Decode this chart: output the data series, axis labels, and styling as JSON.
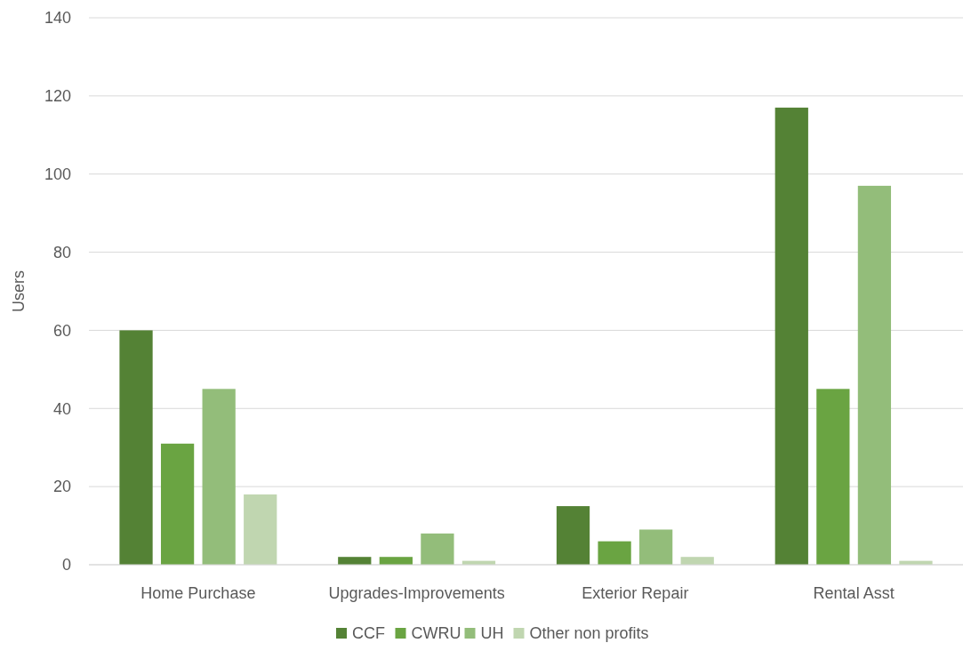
{
  "chart_data": {
    "type": "bar",
    "ylabel": "Users",
    "categories": [
      "Home Purchase",
      "Upgrades-Improvements",
      "Exterior Repair",
      "Rental Asst"
    ],
    "series": [
      {
        "name": "CCF",
        "color": "#548235",
        "values": [
          60,
          2,
          15,
          117
        ]
      },
      {
        "name": "CWRU",
        "color": "#6aa442",
        "values": [
          31,
          2,
          6,
          45
        ]
      },
      {
        "name": "UH",
        "color": "#93bd7a",
        "values": [
          45,
          8,
          9,
          97
        ]
      },
      {
        "name": "Other non profits",
        "color": "#c0d6b0",
        "values": [
          18,
          1,
          2,
          1
        ]
      }
    ],
    "ylim": [
      0,
      140
    ],
    "yticks": [
      0,
      20,
      40,
      60,
      80,
      100,
      120,
      140
    ],
    "grid": "y",
    "legend": "bottom"
  }
}
